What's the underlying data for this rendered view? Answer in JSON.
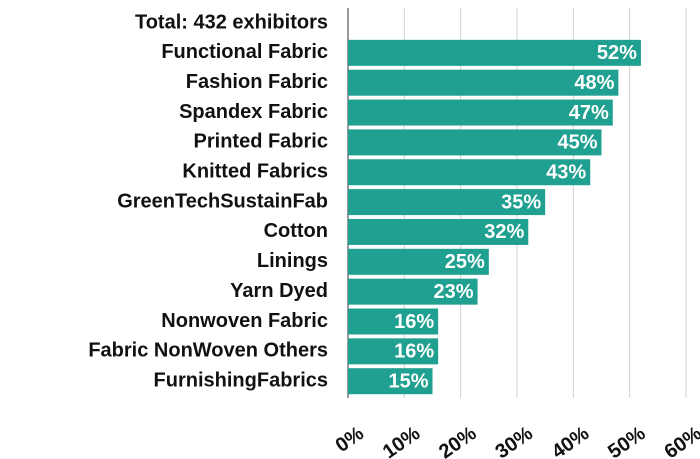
{
  "chart_data": {
    "type": "bar",
    "orientation": "horizontal",
    "title": "Total: 432 exhibitors",
    "categories": [
      "Functional Fabric",
      "Fashion Fabric",
      "Spandex Fabric",
      "Printed Fabric",
      "Knitted Fabrics",
      "GreenTechSustainFab",
      "Cotton",
      "Linings",
      "Yarn Dyed",
      "Nonwoven Fabric",
      "Fabric NonWoven Others",
      "FurnishingFabrics"
    ],
    "values": [
      52,
      48,
      47,
      45,
      43,
      35,
      32,
      25,
      23,
      16,
      16,
      15
    ],
    "value_labels": [
      "52%",
      "48%",
      "47%",
      "45%",
      "43%",
      "35%",
      "32%",
      "25%",
      "23%",
      "16%",
      "16%",
      "15%"
    ],
    "color": "#20a090",
    "xlim": [
      0,
      60
    ],
    "xticks": [
      {
        "value": 0,
        "label": "0%"
      },
      {
        "value": 10,
        "label": "10%"
      },
      {
        "value": 20,
        "label": "20%"
      },
      {
        "value": 30,
        "label": "30%"
      },
      {
        "value": 40,
        "label": "40%"
      },
      {
        "value": 50,
        "label": "50%"
      },
      {
        "value": 60,
        "label": "60%"
      }
    ],
    "grid": true
  }
}
